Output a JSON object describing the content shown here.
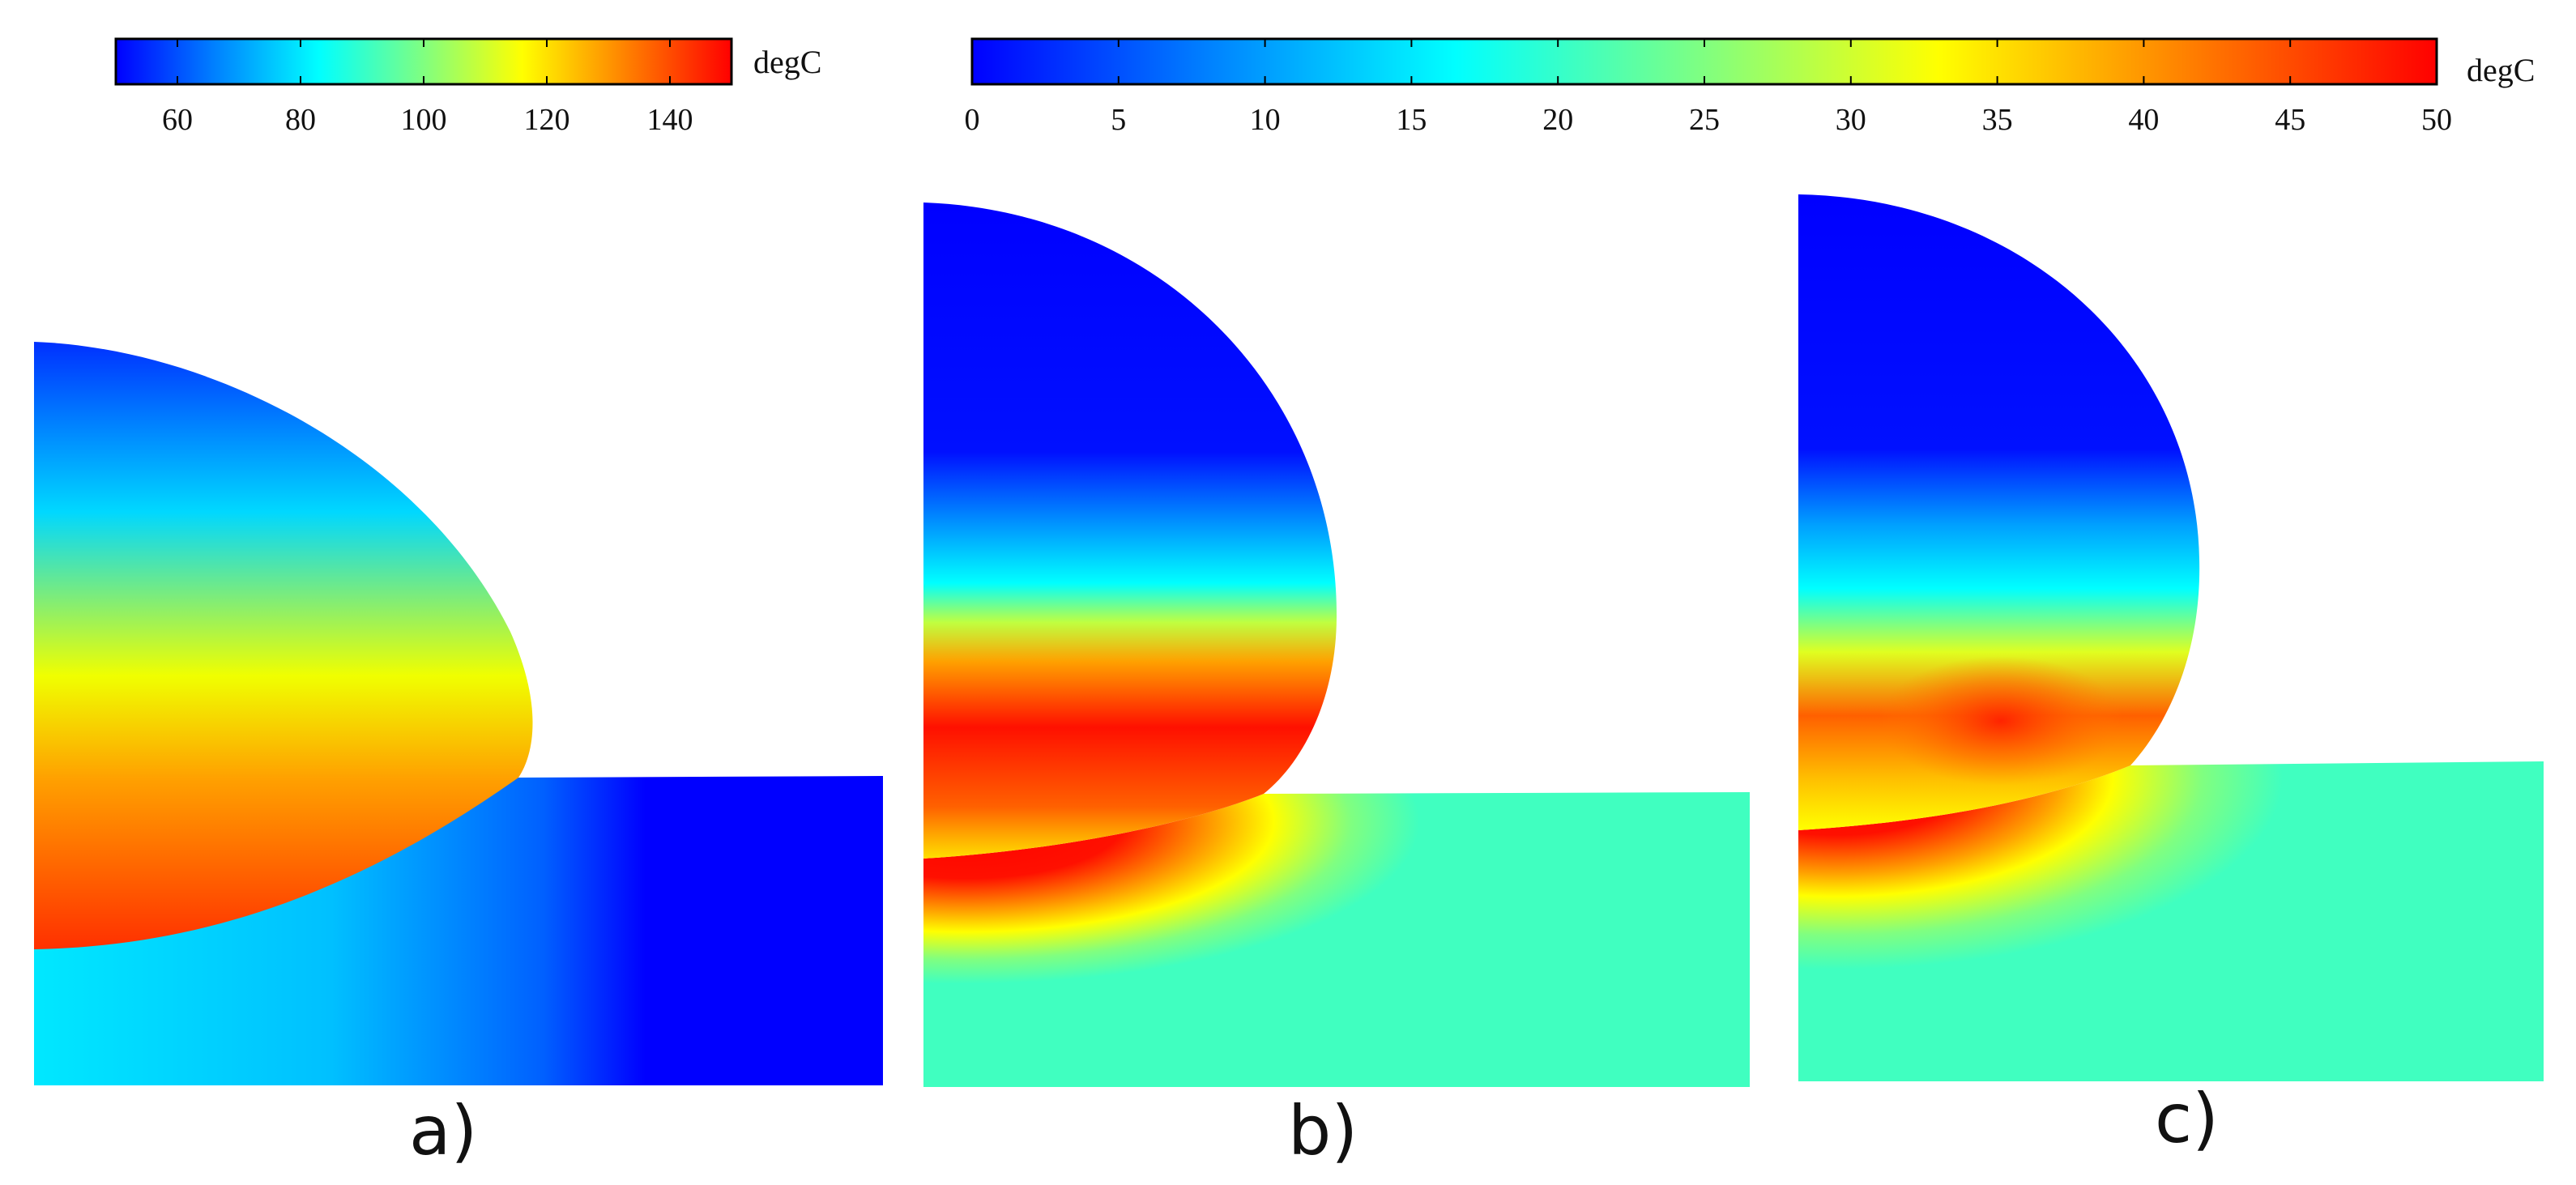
{
  "colormap": [
    "#0000ff",
    "#00b4ff",
    "#00ffff",
    "#7dff7d",
    "#ffff00",
    "#ff9000",
    "#ff0000"
  ],
  "colorbars": [
    {
      "id": "a",
      "unit": "degC",
      "min": 50,
      "max": 150,
      "ticks": [
        {
          "value": 60,
          "label": "60"
        },
        {
          "value": 80,
          "label": "80"
        },
        {
          "value": 100,
          "label": "100"
        },
        {
          "value": 120,
          "label": "120"
        },
        {
          "value": 140,
          "label": "140"
        }
      ]
    },
    {
      "id": "bc",
      "unit": "degC",
      "min": 0,
      "max": 50,
      "ticks": [
        {
          "value": 0,
          "label": "0"
        },
        {
          "value": 5,
          "label": "5"
        },
        {
          "value": 10,
          "label": "10"
        },
        {
          "value": 15,
          "label": "15"
        },
        {
          "value": 20,
          "label": "20"
        },
        {
          "value": 25,
          "label": "25"
        },
        {
          "value": 30,
          "label": "30"
        },
        {
          "value": 35,
          "label": "35"
        },
        {
          "value": 40,
          "label": "40"
        },
        {
          "value": 45,
          "label": "45"
        },
        {
          "value": 50,
          "label": "50"
        }
      ]
    }
  ],
  "panels": [
    {
      "label": "a)"
    },
    {
      "label": "b)"
    },
    {
      "label": "c)"
    }
  ]
}
